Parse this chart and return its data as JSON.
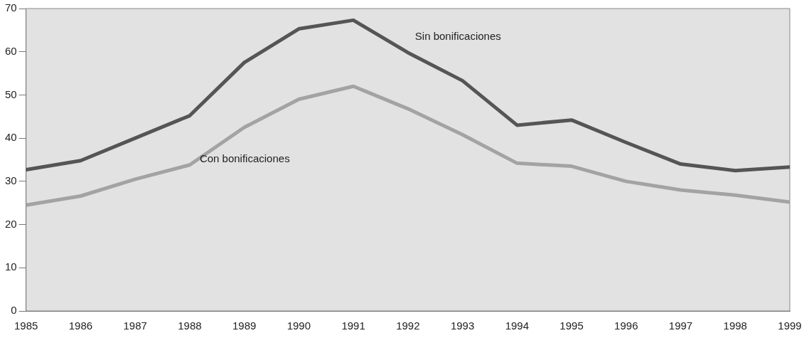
{
  "chart_data": {
    "type": "line",
    "x": [
      1985,
      1986,
      1987,
      1988,
      1989,
      1990,
      1991,
      1992,
      1993,
      1994,
      1995,
      1996,
      1997,
      1998,
      1999
    ],
    "series": [
      {
        "name": "Sin bonificaciones",
        "color": "#555555",
        "values": [
          32.7,
          34.8,
          40,
          45.2,
          57.5,
          65.3,
          67.3,
          59.8,
          53.3,
          43,
          44.2,
          39,
          34,
          32.5,
          33.3
        ]
      },
      {
        "name": "Con bonificaciones",
        "color": "#a3a3a3",
        "values": [
          24.5,
          26.6,
          30.5,
          33.8,
          42.5,
          49,
          52,
          46.8,
          40.8,
          34.2,
          33.5,
          30,
          28,
          26.8,
          25.2
        ]
      }
    ],
    "xlim": [
      1985,
      1999
    ],
    "xticks": [
      1985,
      1986,
      1987,
      1988,
      1989,
      1990,
      1991,
      1992,
      1993,
      1994,
      1995,
      1996,
      1997,
      1998,
      1999
    ],
    "ylim": [
      0,
      70
    ],
    "yticks": [
      0,
      10,
      20,
      30,
      40,
      50,
      60,
      70
    ],
    "grid": false,
    "legend": false,
    "marker": "none",
    "line_style": "solid"
  }
}
